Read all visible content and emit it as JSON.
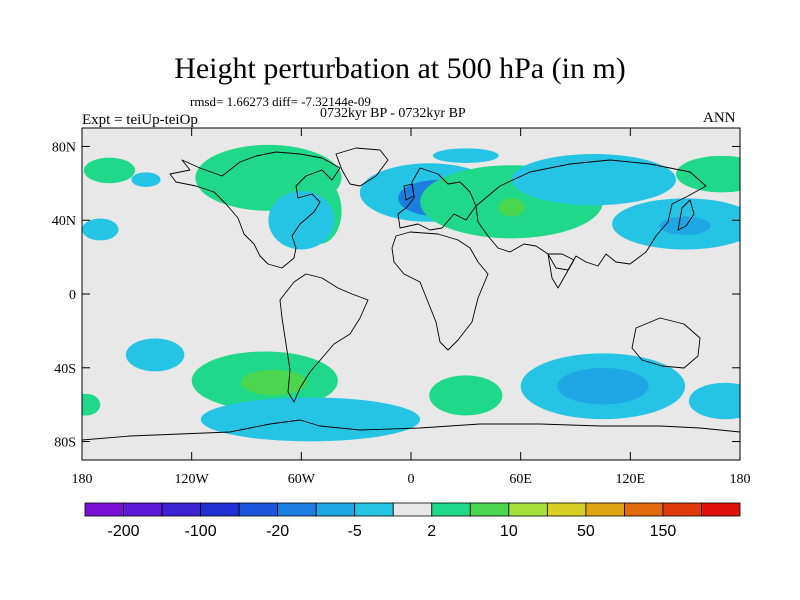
{
  "title": "Height perturbation at 500 hPa (in m)",
  "stats": "rmsd= 1.66273 diff= -7.32144e-09",
  "period": "0732kyr BP - 0732kyr BP",
  "expt": "Expt = teiUp-teiOp",
  "season": "ANN",
  "lat_labels": [
    {
      "lat": 80,
      "text": "80N"
    },
    {
      "lat": 40,
      "text": "40N"
    },
    {
      "lat": 0,
      "text": "0"
    },
    {
      "lat": -40,
      "text": "40S"
    },
    {
      "lat": -80,
      "text": "80S"
    }
  ],
  "lon_labels": [
    {
      "lon": -180,
      "text": "180"
    },
    {
      "lon": -120,
      "text": "120W"
    },
    {
      "lon": -60,
      "text": "60W"
    },
    {
      "lon": 0,
      "text": "0"
    },
    {
      "lon": 60,
      "text": "60E"
    },
    {
      "lon": 120,
      "text": "120E"
    },
    {
      "lon": 180,
      "text": "180"
    }
  ],
  "colorbar": {
    "colors": [
      "#7a0fd6",
      "#5e18d9",
      "#3d23d2",
      "#1f2fd3",
      "#1b55dc",
      "#1c7fe0",
      "#1fa6e4",
      "#26c4e4",
      "#e8e8e8",
      "#20d889",
      "#4ad64e",
      "#a8e03a",
      "#d8cf24",
      "#e0a312",
      "#e06a0c",
      "#e03a0a",
      "#e0100a"
    ],
    "labels": [
      {
        "after_box": 1,
        "text": "-200"
      },
      {
        "after_box": 3,
        "text": "-100"
      },
      {
        "after_box": 5,
        "text": "-20"
      },
      {
        "after_box": 7,
        "text": "-5"
      },
      {
        "after_box": 9,
        "text": "2"
      },
      {
        "after_box": 11,
        "text": "10"
      },
      {
        "after_box": 13,
        "text": "50"
      },
      {
        "after_box": 15,
        "text": "150"
      }
    ]
  },
  "anomalies": [
    {
      "lon": -165,
      "lat": 67,
      "rx": 14,
      "ry": 7,
      "color": "#20d889"
    },
    {
      "lon": -170,
      "lat": 35,
      "rx": 10,
      "ry": 6,
      "color": "#26c4e4"
    },
    {
      "lon": -78,
      "lat": 63,
      "rx": 40,
      "ry": 18,
      "color": "#20d889"
    },
    {
      "lon": -50,
      "lat": 45,
      "rx": 12,
      "ry": 18,
      "color": "#20d889"
    },
    {
      "lon": -60,
      "lat": 40,
      "rx": 18,
      "ry": 16,
      "color": "#26c4e4"
    },
    {
      "lon": -145,
      "lat": 62,
      "rx": 8,
      "ry": 4,
      "color": "#26c4e4"
    },
    {
      "lon": 10,
      "lat": 55,
      "rx": 38,
      "ry": 16,
      "color": "#26c4e4"
    },
    {
      "lon": 15,
      "lat": 52,
      "rx": 22,
      "ry": 10,
      "color": "#1c7fe0"
    },
    {
      "lon": 30,
      "lat": 75,
      "rx": 18,
      "ry": 4,
      "color": "#26c4e4"
    },
    {
      "lon": 55,
      "lat": 50,
      "rx": 50,
      "ry": 20,
      "color": "#20d889"
    },
    {
      "lon": 55,
      "lat": 47,
      "rx": 7,
      "ry": 5,
      "color": "#4ad64e"
    },
    {
      "lon": 100,
      "lat": 62,
      "rx": 45,
      "ry": 14,
      "color": "#26c4e4"
    },
    {
      "lon": 150,
      "lat": 38,
      "rx": 40,
      "ry": 14,
      "color": "#26c4e4"
    },
    {
      "lon": 150,
      "lat": 37,
      "rx": 14,
      "ry": 5,
      "color": "#1fa6e4"
    },
    {
      "lon": 170,
      "lat": 65,
      "rx": 25,
      "ry": 10,
      "color": "#20d889"
    },
    {
      "lon": -140,
      "lat": -33,
      "rx": 16,
      "ry": 9,
      "color": "#26c4e4"
    },
    {
      "lon": -80,
      "lat": -47,
      "rx": 40,
      "ry": 16,
      "color": "#20d889"
    },
    {
      "lon": -75,
      "lat": -48,
      "rx": 18,
      "ry": 7,
      "color": "#4ad64e"
    },
    {
      "lon": -55,
      "lat": -68,
      "rx": 60,
      "ry": 12,
      "color": "#26c4e4"
    },
    {
      "lon": 30,
      "lat": -55,
      "rx": 20,
      "ry": 11,
      "color": "#20d889"
    },
    {
      "lon": 105,
      "lat": -50,
      "rx": 45,
      "ry": 18,
      "color": "#26c4e4"
    },
    {
      "lon": 105,
      "lat": -50,
      "rx": 25,
      "ry": 10,
      "color": "#1fa6e4"
    },
    {
      "lon": 172,
      "lat": -58,
      "rx": 20,
      "ry": 10,
      "color": "#26c4e4"
    },
    {
      "lon": -178,
      "lat": -60,
      "rx": 8,
      "ry": 6,
      "color": "#20d889"
    }
  ]
}
